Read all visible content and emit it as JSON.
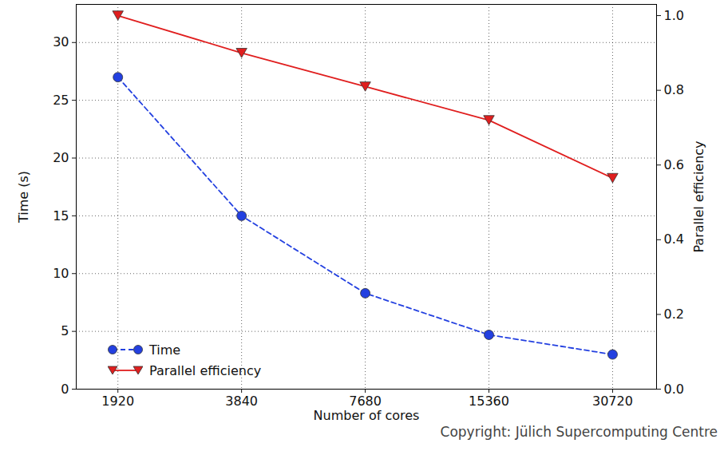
{
  "chart_data": {
    "type": "line",
    "x_label": "Number of cores",
    "y_label": "Time (s)",
    "y2_label": "Parallel efficiency",
    "annotation": "Copyright: Jülich Supercomputing Centre",
    "x": [
      1920,
      3840,
      7680,
      15360,
      30720
    ],
    "xlim": [
      1520,
      39300
    ],
    "xticks": [
      1920,
      3840,
      7680,
      15360,
      30720
    ],
    "log": "x",
    "ylim": [
      0,
      33.3
    ],
    "yticks": [
      0,
      5,
      10,
      15,
      20,
      25,
      30
    ],
    "y2lim": [
      0,
      1.03
    ],
    "y2ticks": [
      {
        "value": 0,
        "label": "0.0"
      },
      {
        "value": 0.2,
        "label": "0.2"
      },
      {
        "value": 0.4,
        "label": "0.4"
      },
      {
        "value": 0.6,
        "label": "0.6"
      },
      {
        "value": 0.8,
        "label": "0.8"
      },
      {
        "value": 1,
        "label": "1.0"
      }
    ],
    "grid": true,
    "legend": "lower left",
    "series": [
      {
        "name": "Time",
        "color": "#2340e0",
        "marker": "circle",
        "line_style": "dashed",
        "values": [
          27,
          15,
          8.3,
          4.7,
          3.0
        ]
      },
      {
        "name": "Parallel efficiency",
        "color": "#e01e1e",
        "marker": "triangle_down",
        "line_style": "solid",
        "axis": "y2",
        "values": [
          1.0,
          0.9,
          0.81,
          0.72,
          0.565
        ]
      }
    ]
  }
}
